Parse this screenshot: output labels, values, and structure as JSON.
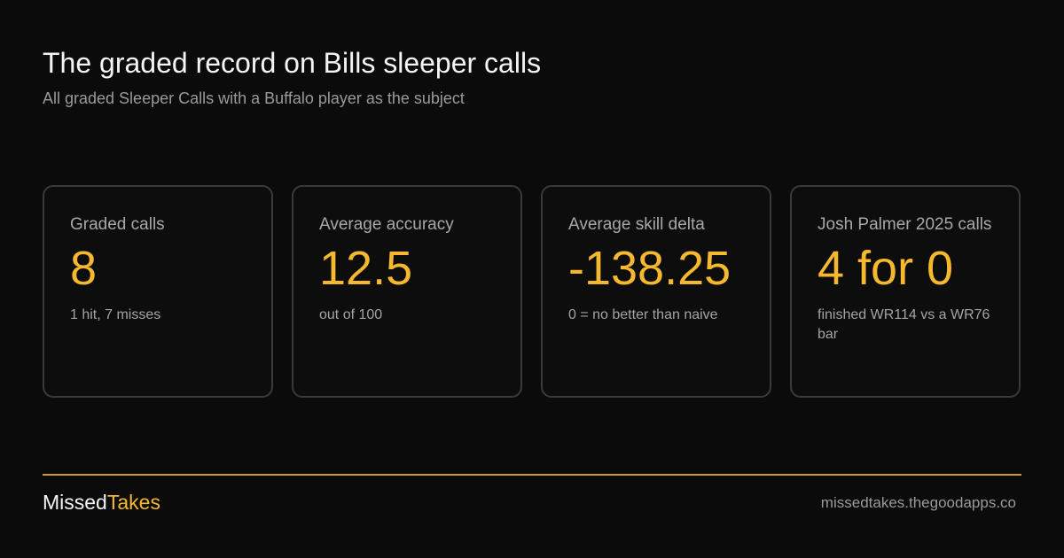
{
  "header": {
    "title": "The graded record on Bills sleeper calls",
    "subtitle": "All graded Sleeper Calls with a Buffalo player as the subject"
  },
  "cards": [
    {
      "label": "Graded calls",
      "value": "8",
      "note": "1 hit, 7 misses"
    },
    {
      "label": "Average accuracy",
      "value": "12.5",
      "note": "out of 100"
    },
    {
      "label": "Average skill delta",
      "value": "-138.25",
      "note": "0 = no better than naive"
    },
    {
      "label": "Josh Palmer 2025 calls",
      "value": "4 for 0",
      "note": "finished WR114 vs a WR76 bar"
    }
  ],
  "footer": {
    "brand_part_1": "Missed",
    "brand_part_2": "Takes",
    "url": "missedtakes.thegoodapps.co"
  },
  "colors": {
    "background": "#0b0b0b",
    "accent": "#f5b82e",
    "card_border": "#3a3a3c",
    "divider": "#c9993a",
    "muted_text": "#9a9a9a"
  }
}
